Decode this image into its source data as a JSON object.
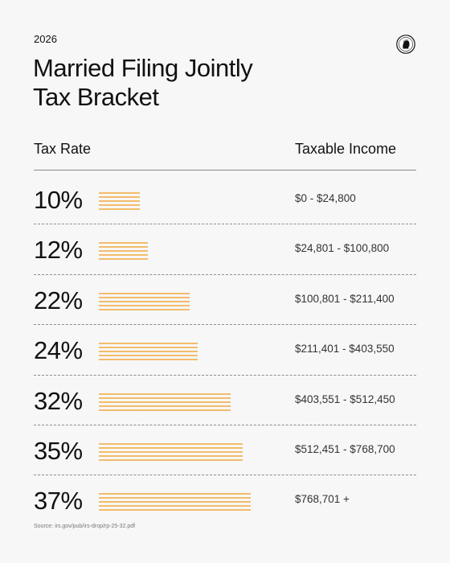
{
  "header": {
    "year": "2026",
    "title_line1": "Married Filing Jointly",
    "title_line2": "Tax Bracket"
  },
  "table": {
    "col_rate": "Tax Rate",
    "col_income": "Taxable Income"
  },
  "chart_data": {
    "type": "bar",
    "orientation": "horizontal",
    "categories": [
      "10%",
      "12%",
      "22%",
      "24%",
      "32%",
      "35%",
      "37%"
    ],
    "values": [
      10,
      12,
      22,
      24,
      32,
      35,
      37
    ],
    "income_ranges": [
      "$0 - $24,800",
      "$24,801 - $100,800",
      "$100,801 - $211,400",
      "$211,401 - $403,550",
      "$403,551 - $512,450",
      "$512,451 - $768,700",
      "$768,701 +"
    ],
    "bar_color": "#f2a93b",
    "bar_style": "striped"
  },
  "source": "Source: irs.gov/pub/irs-drop/rp-25-32.pdf"
}
